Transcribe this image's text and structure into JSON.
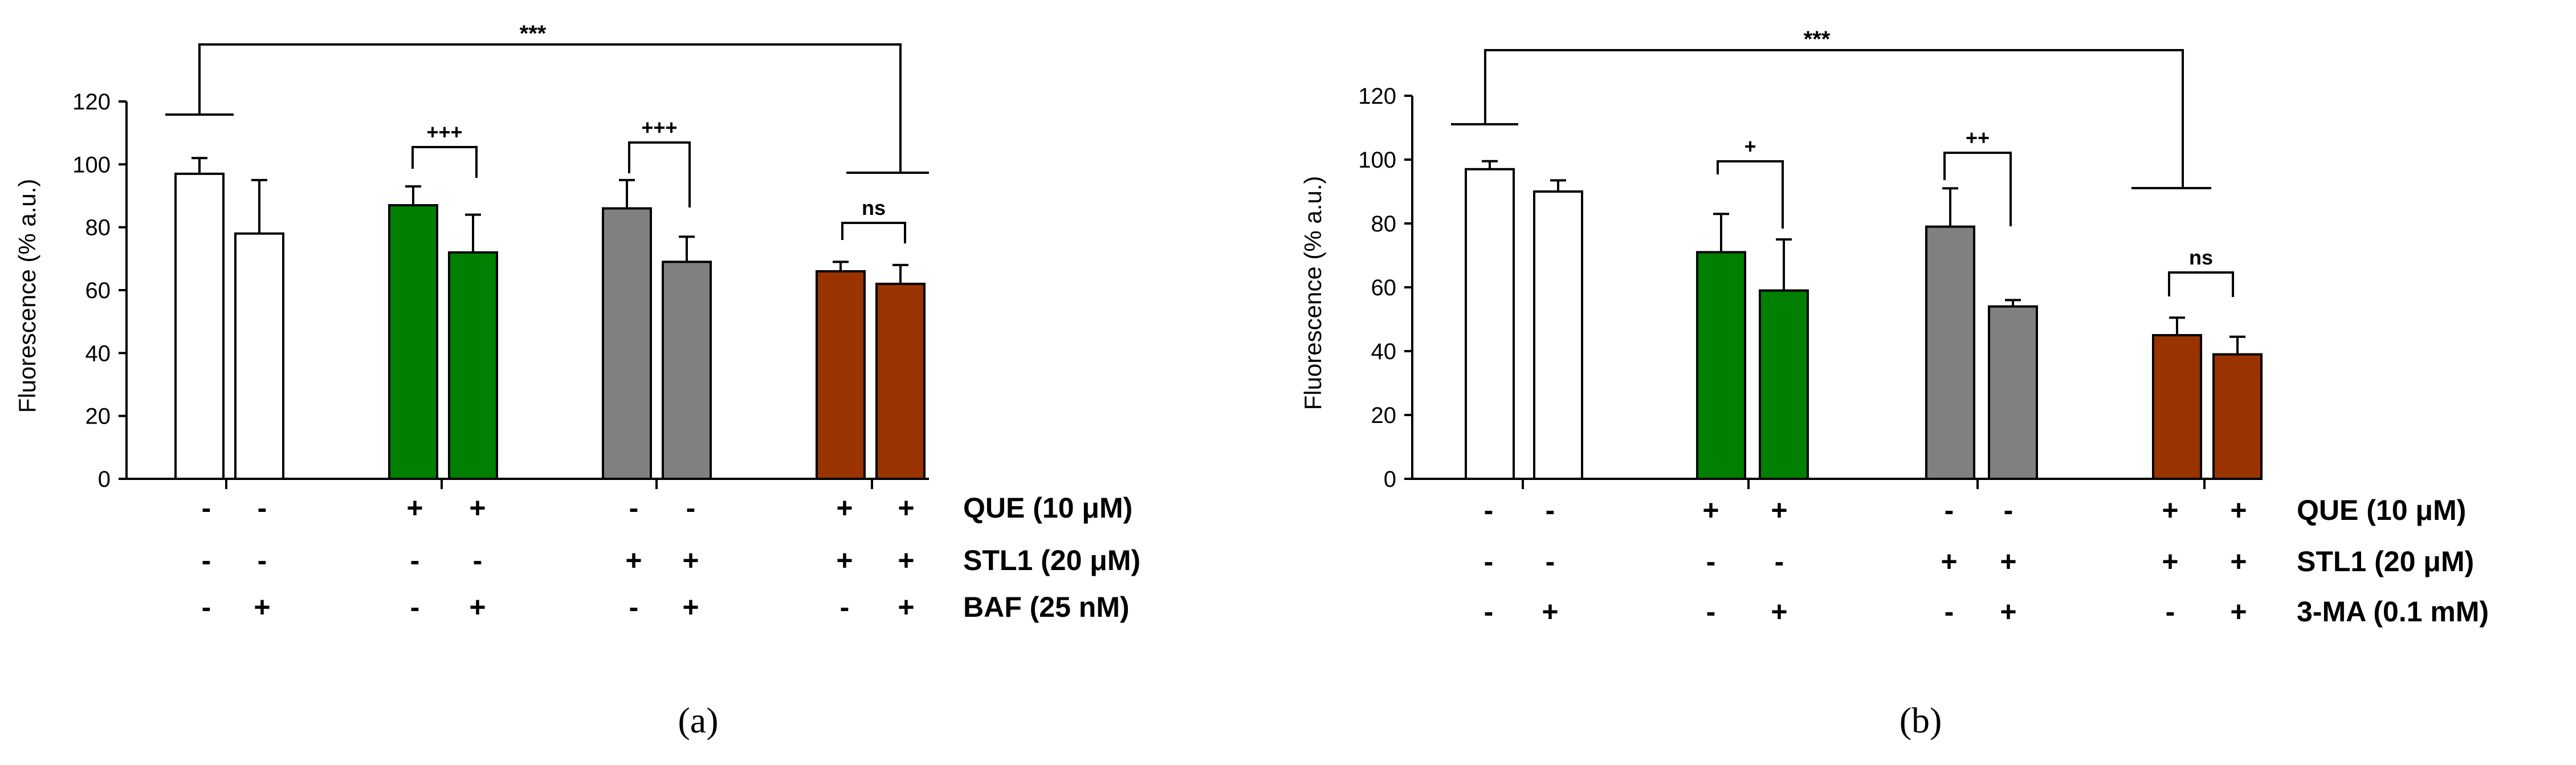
{
  "colors": {
    "white": "#ffffff",
    "green": "#008000",
    "gray": "#808080",
    "brown": "#993300",
    "axis": "#000000"
  },
  "chart_data": [
    {
      "type": "bar",
      "caption": "(a)",
      "ylabel": "Fluorescence (% a.u.)",
      "ylim": [
        0,
        120
      ],
      "yticks": [
        "0",
        "20",
        "40",
        "60",
        "80",
        "100",
        "120"
      ],
      "bars": [
        {
          "value": 97,
          "error": 5,
          "color": "white"
        },
        {
          "value": 78,
          "error": 17,
          "color": "white"
        },
        {
          "value": 87,
          "error": 6,
          "color": "green"
        },
        {
          "value": 72,
          "error": 12,
          "color": "green"
        },
        {
          "value": 86,
          "error": 9,
          "color": "gray"
        },
        {
          "value": 69,
          "error": 8,
          "color": "gray"
        },
        {
          "value": 66,
          "error": 3,
          "color": "brown"
        },
        {
          "value": 62,
          "error": 6,
          "color": "brown"
        }
      ],
      "significance": {
        "overall": "***",
        "pairs": [
          "+++",
          "+++",
          "ns"
        ]
      },
      "conditions": [
        {
          "label": "QUE (10 μM)",
          "signs": [
            "-",
            "-",
            "+",
            "+",
            "-",
            "-",
            "+",
            "+"
          ]
        },
        {
          "label": "STL1 (20 μM)",
          "signs": [
            "-",
            "-",
            "-",
            "-",
            "+",
            "+",
            "+",
            "+"
          ]
        },
        {
          "label": "BAF (25 nM)",
          "signs": [
            "-",
            "+",
            "-",
            "+",
            "-",
            "+",
            "-",
            "+"
          ]
        }
      ]
    },
    {
      "type": "bar",
      "caption": "(b)",
      "ylabel": "Fluorescence (% a.u.)",
      "ylim": [
        0,
        120
      ],
      "yticks": [
        "0",
        "20",
        "40",
        "60",
        "80",
        "100",
        "120"
      ],
      "bars": [
        {
          "value": 97,
          "error": 2.5,
          "color": "white"
        },
        {
          "value": 90,
          "error": 3.5,
          "color": "white"
        },
        {
          "value": 71,
          "error": 12,
          "color": "green"
        },
        {
          "value": 59,
          "error": 16,
          "color": "green"
        },
        {
          "value": 79,
          "error": 12,
          "color": "gray"
        },
        {
          "value": 54,
          "error": 2,
          "color": "gray"
        },
        {
          "value": 45,
          "error": 5.5,
          "color": "brown"
        },
        {
          "value": 39,
          "error": 5.5,
          "color": "brown"
        }
      ],
      "significance": {
        "overall": "***",
        "pairs": [
          "+",
          "++",
          "ns"
        ]
      },
      "conditions": [
        {
          "label": "QUE (10 μM)",
          "signs": [
            "-",
            "-",
            "+",
            "+",
            "-",
            "-",
            "+",
            "+"
          ]
        },
        {
          "label": "STL1 (20 μM)",
          "signs": [
            "-",
            "-",
            "-",
            "-",
            "+",
            "+",
            "+",
            "+"
          ]
        },
        {
          "label": "3-MA (0.1 mM)",
          "signs": [
            "-",
            "+",
            "-",
            "+",
            "-",
            "+",
            "-",
            "+"
          ]
        }
      ]
    }
  ]
}
